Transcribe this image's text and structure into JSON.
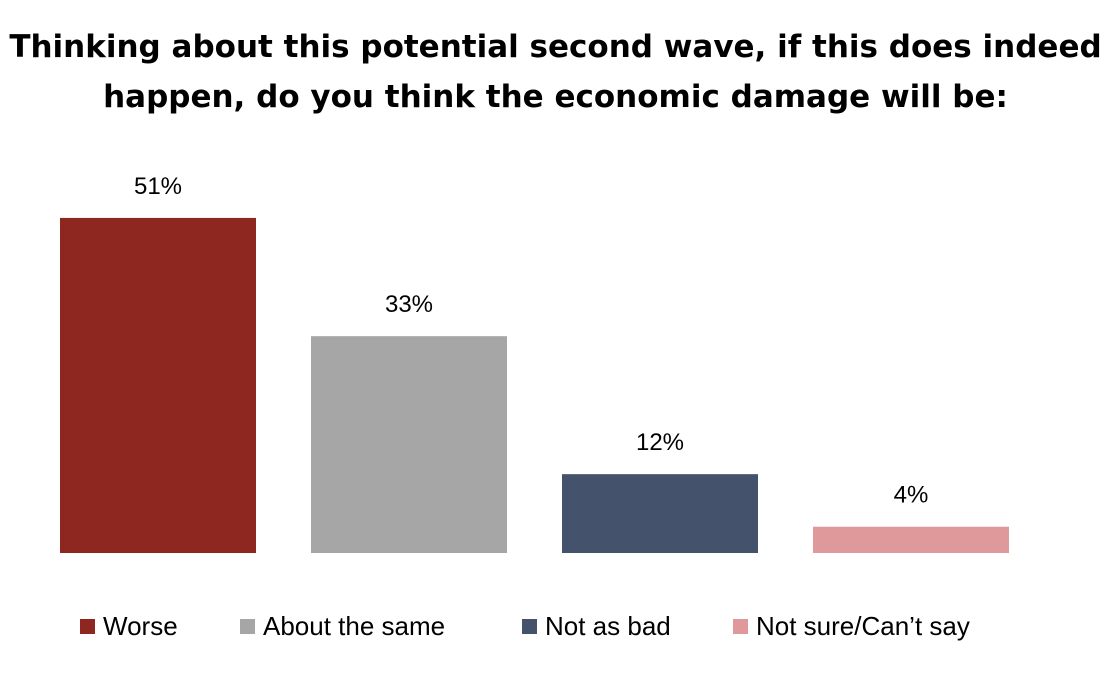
{
  "chart_data": {
    "type": "bar",
    "title": "Thinking about this potential second wave, if this does indeed happen, do you think the economic damage will be:",
    "categories": [
      "Worse",
      "About the same",
      "Not as bad",
      "Not sure/Can’t say"
    ],
    "values": [
      51,
      33,
      12,
      4
    ],
    "data_labels": [
      "51%",
      "33%",
      "12%",
      "4%"
    ],
    "colors": [
      "#8e2720",
      "#a6a6a6",
      "#45526b",
      "#e0999a"
    ],
    "ylim": [
      0,
      60
    ],
    "grid": false,
    "legend": "bottom",
    "xlabel": "",
    "ylabel": ""
  }
}
